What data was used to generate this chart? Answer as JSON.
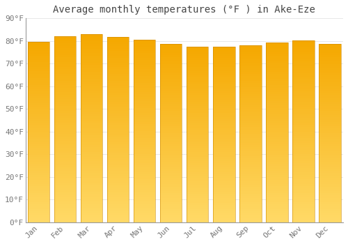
{
  "title": "Average monthly temperatures (°F ) in Ake-Eze",
  "months": [
    "Jan",
    "Feb",
    "Mar",
    "Apr",
    "May",
    "Jun",
    "Jul",
    "Aug",
    "Sep",
    "Oct",
    "Nov",
    "Dec"
  ],
  "values": [
    79.5,
    82.0,
    82.9,
    81.8,
    80.6,
    78.8,
    77.4,
    77.4,
    78.1,
    79.3,
    80.1,
    78.8
  ],
  "bar_color_top": "#F5A800",
  "bar_color_bottom": "#FFD966",
  "bar_edge_left": "#E09000",
  "background_color": "#FFFFFF",
  "plot_bg_color": "#FFFFFF",
  "grid_color": "#E8E8E8",
  "ylim": [
    0,
    90
  ],
  "ytick_step": 10,
  "title_fontsize": 10,
  "tick_fontsize": 8,
  "font_family": "monospace",
  "bar_width": 0.82
}
